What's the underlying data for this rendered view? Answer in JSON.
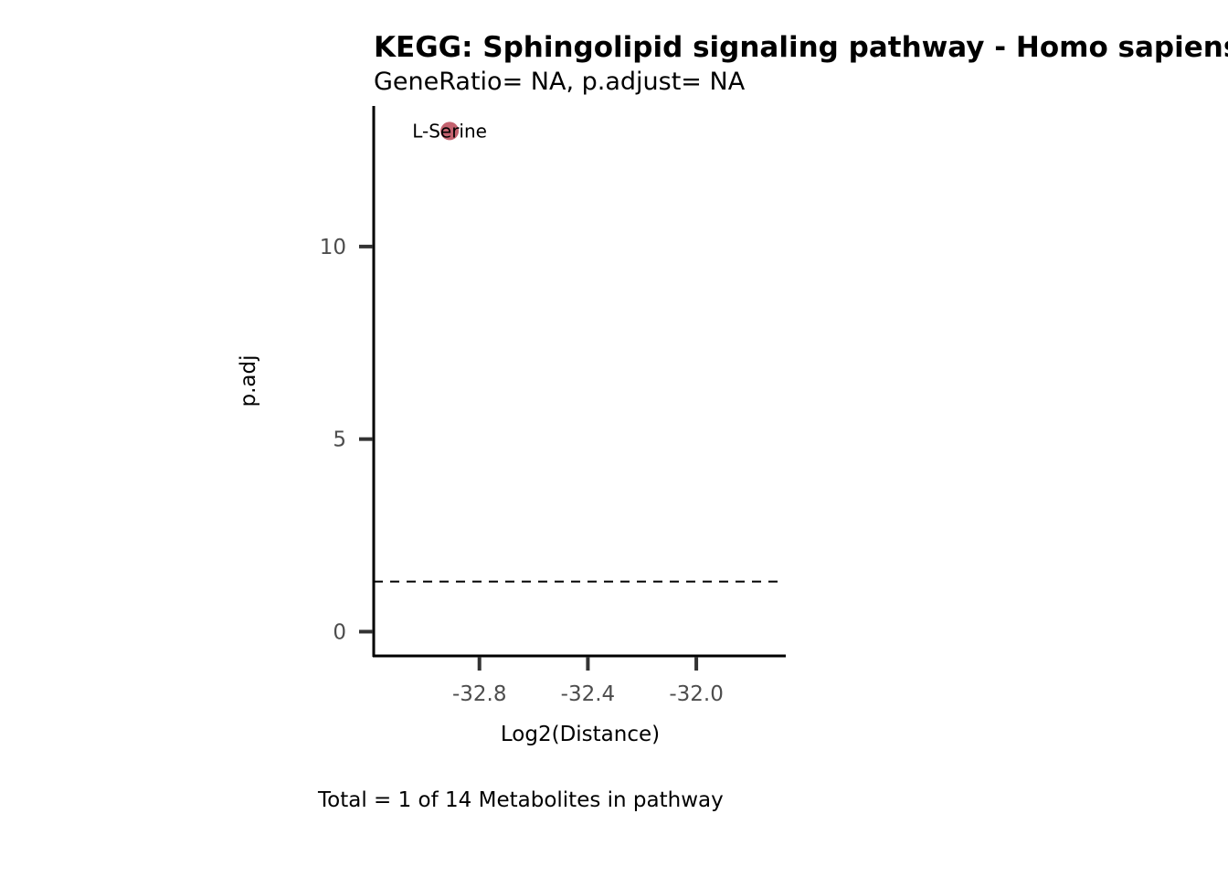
{
  "chart_data": {
    "type": "scatter",
    "title": "KEGG: Sphingolipid signaling pathway - Homo sapiens",
    "subtitle": "GeneRatio= NA, p.adjust= NA",
    "xlabel": "Log2(Distance)",
    "ylabel": "p.adj",
    "caption": "Total = 1 of 14 Metabolites in pathway",
    "xlim": [
      -33.19,
      -31.67
    ],
    "ylim": [
      -0.63,
      13.65
    ],
    "xticks": [
      -32.8,
      -32.4,
      -32.0
    ],
    "xtick_labels": [
      "-32.8",
      "-32.4",
      "-32.0"
    ],
    "yticks": [
      0,
      5,
      10
    ],
    "ytick_labels": [
      "0",
      "5",
      "10"
    ],
    "threshold_line": {
      "y": 1.3,
      "style": "dashed"
    },
    "grid": false,
    "points": [
      {
        "x": -32.91,
        "y": 13.0,
        "label": "L-Serine",
        "color": "#c4626f"
      }
    ]
  }
}
